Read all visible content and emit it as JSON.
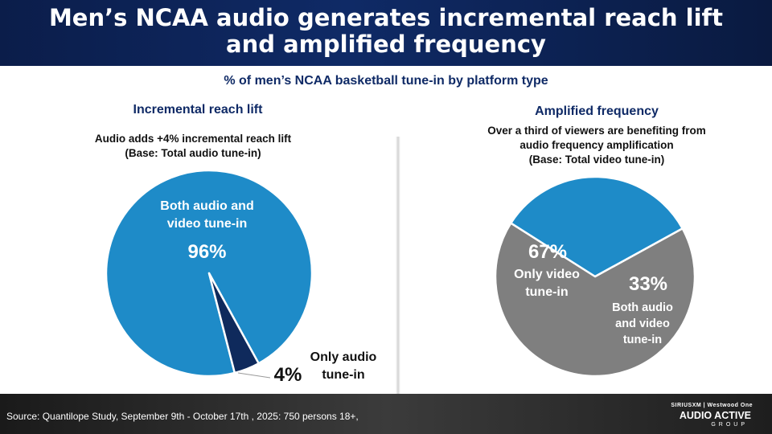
{
  "header": {
    "title": "Men’s NCAA audio generates incremental reach lift and amplified frequency"
  },
  "subtitle": "% of men’s NCAA basketball tune-in by platform type",
  "left_panel": {
    "title": "Incremental reach lift",
    "note_line1": "Audio adds +4% incremental reach lift",
    "note_line2": "(Base: Total audio tune-in)"
  },
  "right_panel": {
    "title": "Amplified frequency",
    "note_line1": "Over a third of viewers are benefiting from",
    "note_line2": "audio frequency amplification",
    "note_line3": "(Base: Total video tune-in)"
  },
  "chart_data": [
    {
      "type": "pie",
      "title": "Incremental reach lift",
      "slices": [
        {
          "label_line1": "Both audio and",
          "label_line2": "video tune-in",
          "value": 96,
          "value_label": "96%",
          "color": "#1e8bc8"
        },
        {
          "label_line1": "Only audio",
          "label_line2": "tune-in",
          "value": 4,
          "value_label": "4%",
          "color": "#0f2a5c"
        }
      ]
    },
    {
      "type": "pie",
      "title": "Amplified frequency",
      "slices": [
        {
          "label_line1": "Only video",
          "label_line2": "tune-in",
          "value": 67,
          "value_label": "67%",
          "color": "#7f7f7f"
        },
        {
          "label_line1": "Both audio",
          "label_line2": "and video",
          "label_line3": "tune-in",
          "value": 33,
          "value_label": "33%",
          "color": "#1e8bc8"
        }
      ]
    }
  ],
  "footer": {
    "source": "Source: Quantilope Study, September 9th - October 17th , 2025: 750 persons 18+,",
    "logo_top": "SIRIUSXM | Westwood One",
    "logo_main": "AUDIO ACTIVE",
    "logo_sub": "GROUP"
  }
}
